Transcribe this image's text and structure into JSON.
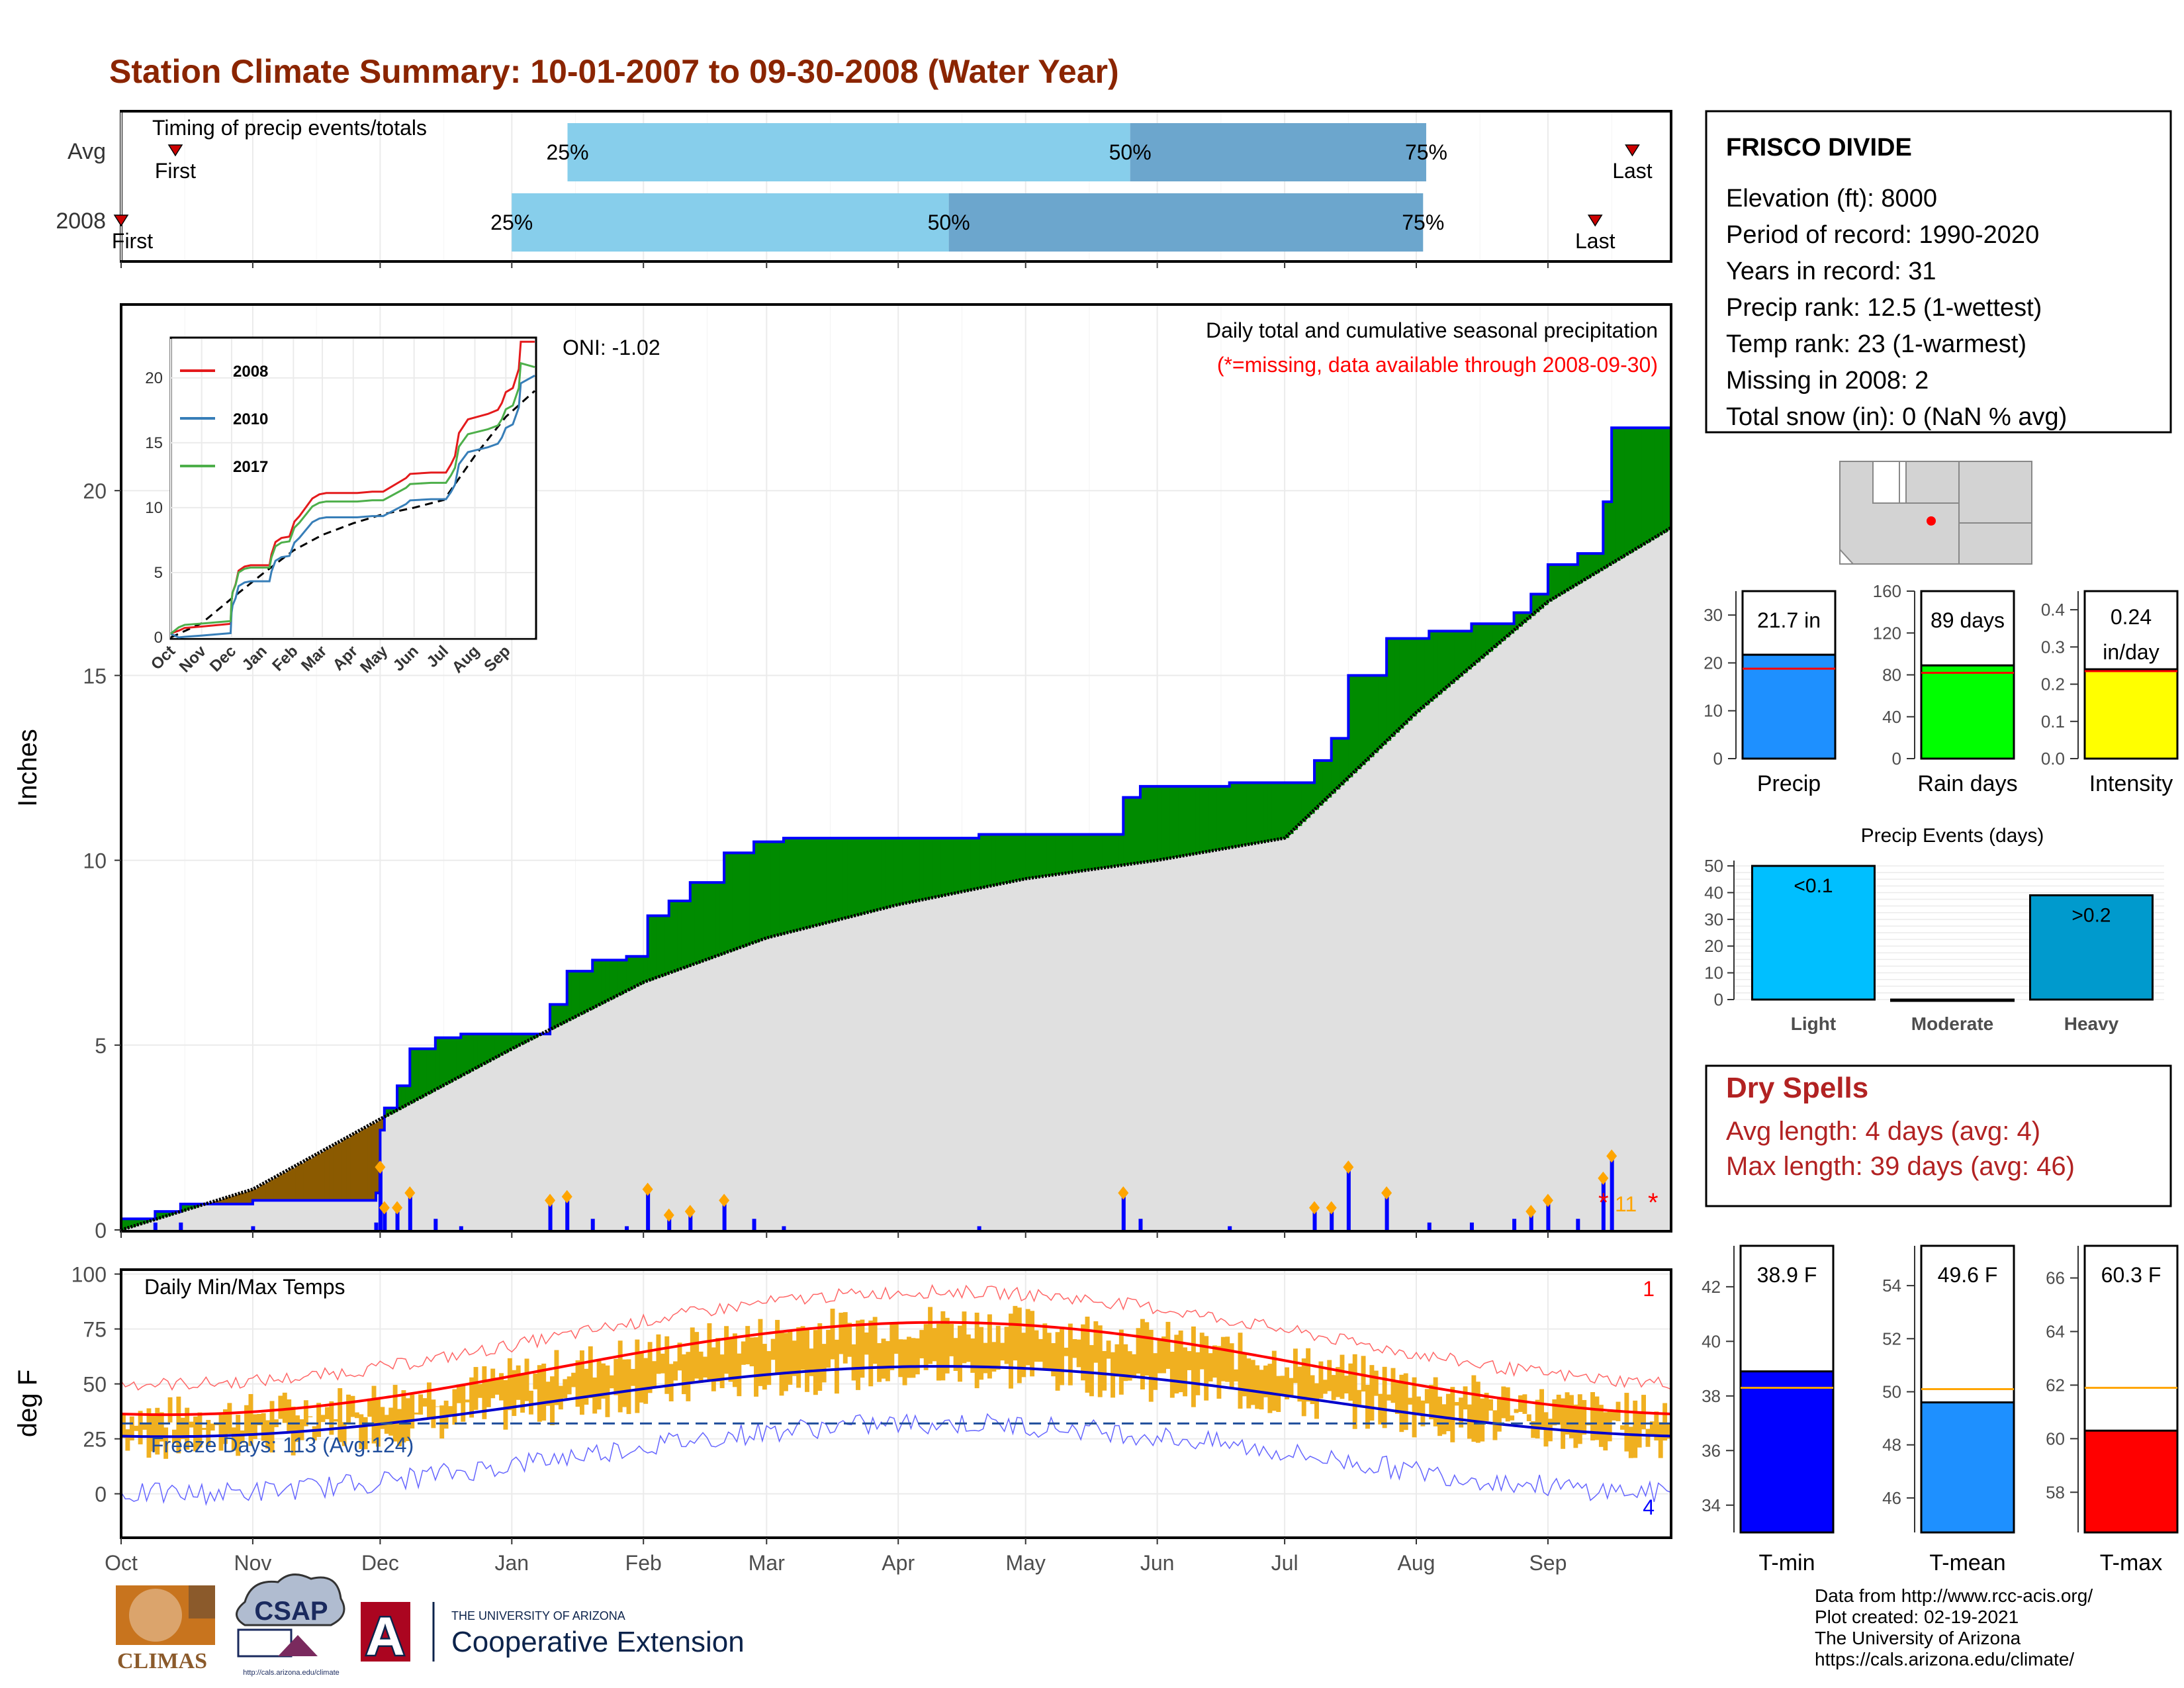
{
  "title": "Station Climate Summary: 10-01-2007 to 09-30-2008 (Water Year)",
  "timing": {
    "title": "Timing of precip events/totals",
    "rows": [
      {
        "label": "Avg",
        "first_frac": 0.035,
        "last_frac": 0.975,
        "p25": 0.288,
        "p50": 0.651,
        "p75": 0.842,
        "first_label": "First",
        "last_label": "Last",
        "p25_label": "25%",
        "p50_label": "50%",
        "p75_label": "75%"
      },
      {
        "label": "2008",
        "first_frac": 0.0,
        "last_frac": 0.951,
        "p25": 0.252,
        "p50": 0.534,
        "p75": 0.84,
        "first_label": "First",
        "last_label": "Last",
        "p25_label": "25%",
        "p50_label": "50%",
        "p75_label": "75%"
      }
    ]
  },
  "precip_panel": {
    "ylabel": "Inches",
    "oni": "ONI: -1.02",
    "header1": "Daily total and cumulative seasonal precipitation",
    "header2": "(*=missing, data available through 2008-09-30)",
    "missing_count": "11",
    "missing_star": "*",
    "yticks": [
      "0",
      "5",
      "10",
      "15",
      "20"
    ]
  },
  "inset": {
    "series": [
      {
        "name": "2008",
        "color": "#e41a1c"
      },
      {
        "name": "2010",
        "color": "#377eb8"
      },
      {
        "name": "2017",
        "color": "#4daf4a"
      }
    ],
    "yticks": [
      "0",
      "5",
      "10",
      "15",
      "20"
    ],
    "xticks": [
      "Oct",
      "Nov",
      "Dec",
      "Jan",
      "Feb",
      "Mar",
      "Apr",
      "May",
      "Jun",
      "Jul",
      "Aug",
      "Sep"
    ]
  },
  "temp_panel": {
    "ylabel": "deg F",
    "title": "Daily Min/Max Temps",
    "freeze": "Freeze Days: 113 (Avg:124)",
    "record_high_count": "1",
    "record_low_count": "4",
    "yticks": [
      "0",
      "25",
      "50",
      "75",
      "100"
    ]
  },
  "months": [
    "Oct",
    "Nov",
    "Dec",
    "Jan",
    "Feb",
    "Mar",
    "Apr",
    "May",
    "Jun",
    "Jul",
    "Aug",
    "Sep"
  ],
  "info": {
    "station": "FRISCO DIVIDE",
    "lines": [
      "Elevation (ft): 8000",
      "Period of record: 1990-2020",
      "Years in record: 31",
      "Precip rank: 12.5 (1-wettest)",
      "Temp rank: 23 (1-warmest)",
      "Missing in 2008: 2",
      "Total snow (in): 0 (NaN % avg)"
    ]
  },
  "mini_bars": [
    {
      "label": "Precip",
      "value_text": "21.7 in",
      "value": 21.7,
      "avg": 18.8,
      "ymax": 35,
      "ticks": [
        "0",
        "10",
        "20",
        "30"
      ],
      "tickvals": [
        0,
        10,
        20,
        30
      ],
      "color": "#1e90ff"
    },
    {
      "label": "Rain days",
      "value_text": "89 days",
      "value": 89,
      "avg": 82,
      "ymax": 160,
      "ticks": [
        "0",
        "40",
        "80",
        "120",
        "160"
      ],
      "tickvals": [
        0,
        40,
        80,
        120,
        160
      ],
      "color": "#00ff00"
    },
    {
      "label": "Intensity",
      "value_text": "0.24 in/day",
      "value_line1": "0.24",
      "value_line2": "in/day",
      "value": 0.24,
      "avg": 0.235,
      "ymax": 0.45,
      "ticks": [
        "0.0",
        "0.1",
        "0.2",
        "0.3",
        "0.4"
      ],
      "tickvals": [
        0.0,
        0.1,
        0.2,
        0.3,
        0.4
      ],
      "color": "#ffff00"
    }
  ],
  "events": {
    "title": "Precip Events (days)",
    "yticks": [
      "0",
      "10",
      "20",
      "30",
      "40",
      "50"
    ],
    "bars": [
      {
        "category": "Light",
        "value": 50,
        "label": "<0.1",
        "color": "#00bfff"
      },
      {
        "category": "Moderate",
        "value": 0,
        "label": "",
        "color": "#00bfff"
      },
      {
        "category": "Heavy",
        "value": 39,
        "label": ">0.2",
        "color": "#009acd"
      }
    ]
  },
  "dry": {
    "title": "Dry Spells",
    "line1": "Avg length: 4 days (avg: 4)",
    "line2": "Max length: 39 days (avg: 46)"
  },
  "temp_bars": [
    {
      "label": "T-min",
      "value_text": "38.9 F",
      "value": 38.9,
      "avg": 38.3,
      "ymin": 33,
      "ymax": 43.5,
      "ticks": [
        "34",
        "36",
        "38",
        "40",
        "42"
      ],
      "tickvals": [
        34,
        36,
        38,
        40,
        42
      ],
      "color": "#0000ff"
    },
    {
      "label": "T-mean",
      "value_text": "49.6 F",
      "value": 49.6,
      "avg": 50.1,
      "ymin": 44.7,
      "ymax": 55.5,
      "ticks": [
        "46",
        "48",
        "50",
        "52",
        "54"
      ],
      "tickvals": [
        46,
        48,
        50,
        52,
        54
      ],
      "color": "#1e90ff"
    },
    {
      "label": "T-max",
      "value_text": "60.3 F",
      "value": 60.3,
      "avg": 61.9,
      "ymin": 56.5,
      "ymax": 67.2,
      "ticks": [
        "58",
        "60",
        "62",
        "64",
        "66"
      ],
      "tickvals": [
        58,
        60,
        62,
        64,
        66
      ],
      "color": "#ff0000"
    }
  ],
  "footer": {
    "lines": [
      "Data from http://www.rcc-acis.org/",
      "Plot created: 02-19-2021",
      "The University of Arizona",
      "https://cals.arizona.edu/climate/"
    ],
    "climas": "CLIMAS",
    "csap": "CSAP",
    "csap_url": "http://cals.arizona.edu/climate",
    "ua_small": "THE UNIVERSITY OF ARIZONA",
    "ua_big": "Cooperative Extension",
    "ua_letter": "A"
  },
  "chart_data": {
    "type": "area",
    "title": "Daily total and cumulative seasonal precipitation",
    "ylabel": "Inches",
    "ylim": [
      0,
      24
    ],
    "xlim": [
      "2007-10-01",
      "2008-09-30"
    ],
    "series": [
      {
        "name": "cumulative precip 2008",
        "x": [
          "2007-10-01",
          "2007-10-09",
          "2007-10-15",
          "2007-11-01",
          "2007-11-30",
          "2007-12-01",
          "2007-12-02",
          "2007-12-05",
          "2007-12-08",
          "2007-12-14",
          "2007-12-20",
          "2008-01-08",
          "2008-01-10",
          "2008-01-14",
          "2008-01-20",
          "2008-01-28",
          "2008-02-02",
          "2008-02-07",
          "2008-02-12",
          "2008-02-20",
          "2008-02-27",
          "2008-03-05",
          "2008-03-20",
          "2008-04-05",
          "2008-04-20",
          "2008-05-01",
          "2008-05-24",
          "2008-05-28",
          "2008-06-18",
          "2008-07-03",
          "2008-07-08",
          "2008-07-12",
          "2008-07-16",
          "2008-07-25",
          "2008-08-04",
          "2008-08-14",
          "2008-08-24",
          "2008-08-28",
          "2008-09-01",
          "2008-09-08",
          "2008-09-14",
          "2008-09-16",
          "2008-09-30"
        ],
        "values": [
          0.3,
          0.5,
          0.7,
          0.8,
          1.0,
          2.7,
          3.3,
          3.9,
          4.9,
          5.2,
          5.3,
          5.3,
          6.1,
          7.0,
          7.3,
          7.4,
          8.5,
          8.9,
          9.4,
          10.2,
          10.5,
          10.6,
          10.6,
          10.6,
          10.7,
          10.7,
          11.7,
          12.0,
          12.1,
          12.1,
          12.7,
          13.3,
          15.0,
          16.0,
          16.2,
          16.4,
          16.7,
          17.2,
          18.0,
          18.3,
          19.7,
          21.7,
          21.7
        ]
      },
      {
        "name": "average cumulative",
        "x": [
          "2007-10-01",
          "2007-11-01",
          "2007-12-01",
          "2008-01-01",
          "2008-02-01",
          "2008-03-01",
          "2008-04-01",
          "2008-05-01",
          "2008-06-01",
          "2008-07-01",
          "2008-08-01",
          "2008-09-01",
          "2008-09-30"
        ],
        "values": [
          0.0,
          1.1,
          3.0,
          4.9,
          6.7,
          7.9,
          8.8,
          9.5,
          10.0,
          10.6,
          14.0,
          17.0,
          19.0
        ]
      }
    ]
  }
}
